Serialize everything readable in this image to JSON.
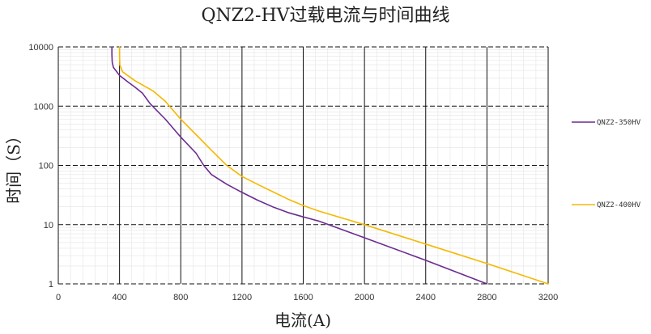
{
  "chart_data": {
    "type": "line",
    "title": "QNZ2-HV过载电流与时间曲线",
    "xlabel": "电流(A)",
    "ylabel": "时间（S）",
    "x_scale": "linear",
    "y_scale": "log",
    "xlim": [
      0,
      3200
    ],
    "ylim": [
      1,
      10000
    ],
    "x_ticks": [
      0,
      400,
      800,
      1200,
      1600,
      2000,
      2400,
      2800,
      3200
    ],
    "x_tick_labels": [
      "0",
      "400",
      "800",
      "1200",
      "1600",
      "2000",
      "2400",
      "2800",
      "3200"
    ],
    "y_ticks": [
      1,
      10,
      100,
      1000,
      10000
    ],
    "y_tick_labels": [
      "1",
      "10",
      "100",
      "1000",
      "10000"
    ],
    "grid": true,
    "legend_position": "right",
    "series": [
      {
        "name": "QNZ2-350HV",
        "color": "#6a2c91",
        "points": [
          [
            350,
            10000
          ],
          [
            350,
            7500
          ],
          [
            352,
            5500
          ],
          [
            360,
            4500
          ],
          [
            400,
            3300
          ],
          [
            460,
            2500
          ],
          [
            500,
            2100
          ],
          [
            550,
            1650
          ],
          [
            600,
            1100
          ],
          [
            700,
            600
          ],
          [
            800,
            300
          ],
          [
            900,
            160
          ],
          [
            950,
            100
          ],
          [
            1000,
            70
          ],
          [
            1100,
            48
          ],
          [
            1200,
            35
          ],
          [
            1300,
            26
          ],
          [
            1400,
            20
          ],
          [
            1500,
            16
          ],
          [
            1600,
            13.5
          ],
          [
            1700,
            11.5
          ],
          [
            2000,
            6
          ],
          [
            2400,
            2.5
          ],
          [
            2800,
            1
          ]
        ]
      },
      {
        "name": "QNZ2-400HV",
        "color": "#f5b800",
        "points": [
          [
            400,
            10000
          ],
          [
            400,
            7500
          ],
          [
            402,
            5000
          ],
          [
            420,
            3800
          ],
          [
            500,
            2700
          ],
          [
            560,
            2200
          ],
          [
            620,
            1800
          ],
          [
            700,
            1200
          ],
          [
            800,
            600
          ],
          [
            900,
            330
          ],
          [
            1000,
            180
          ],
          [
            1100,
            100
          ],
          [
            1200,
            65
          ],
          [
            1300,
            48
          ],
          [
            1400,
            36
          ],
          [
            1500,
            27
          ],
          [
            1600,
            21
          ],
          [
            1700,
            17
          ],
          [
            2000,
            10
          ],
          [
            2400,
            4.7
          ],
          [
            2800,
            2.2
          ],
          [
            3200,
            1
          ]
        ]
      }
    ]
  }
}
